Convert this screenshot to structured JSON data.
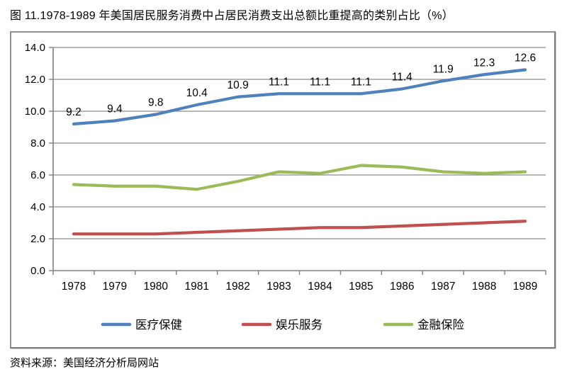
{
  "page": {
    "title": "图 11.1978-1989 年美国居民服务消费中占居民消费支出总额比重提高的类别占比（%）",
    "source": "资料来源：美国经济分析局网站"
  },
  "chart_data": {
    "type": "line",
    "title": "图 11.1978-1989 年美国居民服务消费中占居民消费支出总额比重提高的类别占比（%）",
    "categories": [
      "1978",
      "1979",
      "1980",
      "1981",
      "1982",
      "1983",
      "1984",
      "1985",
      "1986",
      "1987",
      "1988",
      "1989"
    ],
    "series": [
      {
        "name": "医疗保健",
        "color": "#4F81BD",
        "show_labels": true,
        "values": [
          9.2,
          9.4,
          9.8,
          10.4,
          10.9,
          11.1,
          11.1,
          11.1,
          11.4,
          11.9,
          12.3,
          12.6
        ]
      },
      {
        "name": "娱乐服务",
        "color": "#C0504D",
        "show_labels": false,
        "values": [
          2.3,
          2.3,
          2.3,
          2.4,
          2.5,
          2.6,
          2.7,
          2.7,
          2.8,
          2.9,
          3.0,
          3.1
        ]
      },
      {
        "name": "金融保险",
        "color": "#9BBB59",
        "show_labels": false,
        "values": [
          5.4,
          5.3,
          5.3,
          5.1,
          5.6,
          6.2,
          6.1,
          6.6,
          6.5,
          6.2,
          6.1,
          6.2
        ]
      }
    ],
    "xlabel": "",
    "ylabel": "",
    "ylim": [
      0,
      14
    ],
    "ytick_step": 2,
    "ytick_labels": [
      "0.0",
      "2.0",
      "4.0",
      "6.0",
      "8.0",
      "10.0",
      "12.0",
      "14.0"
    ],
    "grid": true,
    "legend_position": "bottom"
  },
  "style_colors": {
    "grid": "#8C8C8C",
    "axis": "#808080",
    "label_text": "#000000",
    "border": "#919191"
  }
}
